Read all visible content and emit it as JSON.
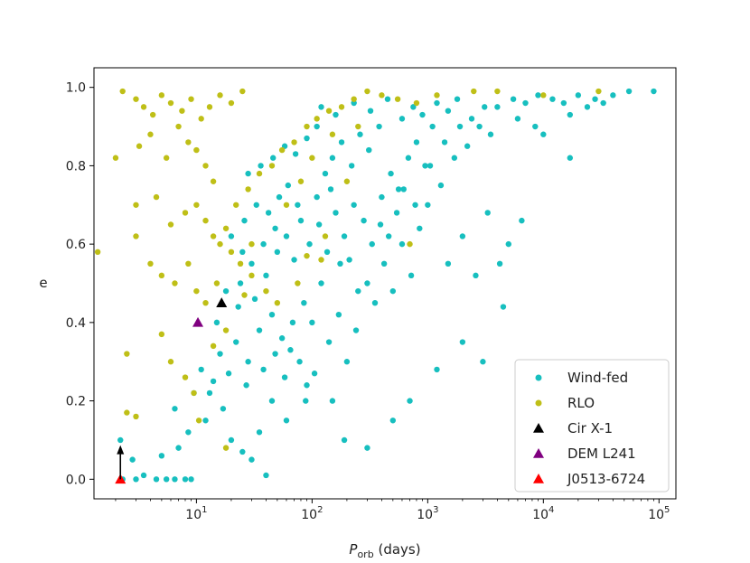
{
  "chart_data": {
    "type": "scatter",
    "xlabel_main": "P",
    "xlabel_sub": "orb",
    "xlabel_unit": " (days)",
    "ylabel": "e",
    "xscale": "log",
    "xlim": [
      1.3,
      140000
    ],
    "ylim": [
      -0.05,
      1.05
    ],
    "x_ticks": [
      {
        "value": 10,
        "base": "10",
        "exp": "1"
      },
      {
        "value": 100,
        "base": "10",
        "exp": "2"
      },
      {
        "value": 1000,
        "base": "10",
        "exp": "3"
      },
      {
        "value": 10000,
        "base": "10",
        "exp": "4"
      },
      {
        "value": 100000,
        "base": "10",
        "exp": "5"
      }
    ],
    "y_ticks": [
      "0.0",
      "0.2",
      "0.4",
      "0.6",
      "0.8",
      "1.0"
    ],
    "legend_position": "lower-right",
    "colors": {
      "wind_fed": "#17bfbf",
      "rlo": "#bfbf17",
      "cir_x1": "#000000",
      "dem_l241": "#800080",
      "j0513": "#ff0000",
      "arrow": "#000000"
    },
    "series": [
      {
        "name": "Wind-fed",
        "marker": "circle",
        "color": "#17bfbf",
        "points": [
          [
            2.3,
            0.0
          ],
          [
            3.0,
            0.0
          ],
          [
            3.5,
            0.01
          ],
          [
            4.5,
            0.0
          ],
          [
            5.5,
            0.0
          ],
          [
            6.5,
            0.0
          ],
          [
            8.0,
            0.0
          ],
          [
            9.0,
            0.0
          ],
          [
            2.2,
            0.1
          ],
          [
            2.8,
            0.05
          ],
          [
            5.0,
            0.06
          ],
          [
            7.0,
            0.08
          ],
          [
            8.5,
            0.12
          ],
          [
            6.5,
            0.18
          ],
          [
            9.5,
            0.22
          ],
          [
            12,
            0.15
          ],
          [
            14,
            0.25
          ],
          [
            17,
            0.18
          ],
          [
            20,
            0.1
          ],
          [
            25,
            0.07
          ],
          [
            30,
            0.05
          ],
          [
            40,
            0.01
          ],
          [
            16,
            0.32
          ],
          [
            22,
            0.35
          ],
          [
            28,
            0.3
          ],
          [
            35,
            0.38
          ],
          [
            45,
            0.42
          ],
          [
            55,
            0.36
          ],
          [
            65,
            0.33
          ],
          [
            18,
            0.48
          ],
          [
            24,
            0.5
          ],
          [
            30,
            0.55
          ],
          [
            40,
            0.52
          ],
          [
            50,
            0.58
          ],
          [
            60,
            0.62
          ],
          [
            70,
            0.56
          ],
          [
            20,
            0.62
          ],
          [
            26,
            0.66
          ],
          [
            33,
            0.7
          ],
          [
            42,
            0.68
          ],
          [
            52,
            0.72
          ],
          [
            62,
            0.75
          ],
          [
            75,
            0.7
          ],
          [
            28,
            0.78
          ],
          [
            36,
            0.8
          ],
          [
            46,
            0.82
          ],
          [
            58,
            0.85
          ],
          [
            72,
            0.83
          ],
          [
            90,
            0.87
          ],
          [
            110,
            0.9
          ],
          [
            85,
            0.45
          ],
          [
            100,
            0.4
          ],
          [
            120,
            0.5
          ],
          [
            140,
            0.35
          ],
          [
            170,
            0.42
          ],
          [
            200,
            0.3
          ],
          [
            240,
            0.38
          ],
          [
            95,
            0.6
          ],
          [
            115,
            0.65
          ],
          [
            135,
            0.58
          ],
          [
            160,
            0.68
          ],
          [
            190,
            0.62
          ],
          [
            230,
            0.7
          ],
          [
            280,
            0.66
          ],
          [
            130,
            0.78
          ],
          [
            150,
            0.82
          ],
          [
            180,
            0.86
          ],
          [
            220,
            0.8
          ],
          [
            260,
            0.88
          ],
          [
            310,
            0.84
          ],
          [
            380,
            0.9
          ],
          [
            300,
            0.5
          ],
          [
            350,
            0.45
          ],
          [
            420,
            0.55
          ],
          [
            500,
            0.48
          ],
          [
            600,
            0.6
          ],
          [
            720,
            0.52
          ],
          [
            850,
            0.64
          ],
          [
            400,
            0.72
          ],
          [
            480,
            0.78
          ],
          [
            560,
            0.74
          ],
          [
            680,
            0.82
          ],
          [
            800,
            0.86
          ],
          [
            950,
            0.8
          ],
          [
            1100,
            0.9
          ],
          [
            600,
            0.92
          ],
          [
            750,
            0.95
          ],
          [
            900,
            0.93
          ],
          [
            1200,
            0.96
          ],
          [
            1500,
            0.94
          ],
          [
            1800,
            0.97
          ],
          [
            1000,
            0.7
          ],
          [
            1300,
            0.75
          ],
          [
            1700,
            0.82
          ],
          [
            2200,
            0.85
          ],
          [
            2800,
            0.9
          ],
          [
            3500,
            0.88
          ],
          [
            1500,
            0.55
          ],
          [
            2000,
            0.62
          ],
          [
            2600,
            0.52
          ],
          [
            3300,
            0.68
          ],
          [
            4200,
            0.55
          ],
          [
            5000,
            0.6
          ],
          [
            2000,
            0.35
          ],
          [
            4500,
            0.44
          ],
          [
            3000,
            0.3
          ],
          [
            1200,
            0.28
          ],
          [
            700,
            0.2
          ],
          [
            500,
            0.15
          ],
          [
            190,
            0.1
          ],
          [
            300,
            0.08
          ],
          [
            150,
            0.2
          ],
          [
            90,
            0.24
          ],
          [
            60,
            0.15
          ],
          [
            45,
            0.2
          ],
          [
            35,
            0.12
          ],
          [
            4000,
            0.95
          ],
          [
            5500,
            0.97
          ],
          [
            7000,
            0.96
          ],
          [
            9000,
            0.98
          ],
          [
            12000,
            0.97
          ],
          [
            15000,
            0.96
          ],
          [
            20000,
            0.98
          ],
          [
            28000,
            0.97
          ],
          [
            40000,
            0.98
          ],
          [
            55000,
            0.99
          ],
          [
            90000,
            0.99
          ],
          [
            6000,
            0.92
          ],
          [
            8500,
            0.9
          ],
          [
            17000,
            0.93
          ],
          [
            24000,
            0.95
          ],
          [
            33000,
            0.96
          ],
          [
            6500,
            0.66
          ],
          [
            17000,
            0.82
          ],
          [
            10000,
            0.88
          ],
          [
            11,
            0.28
          ],
          [
            13,
            0.22
          ],
          [
            15,
            0.4
          ],
          [
            19,
            0.27
          ],
          [
            23,
            0.44
          ],
          [
            27,
            0.24
          ],
          [
            32,
            0.46
          ],
          [
            38,
            0.28
          ],
          [
            48,
            0.32
          ],
          [
            58,
            0.26
          ],
          [
            68,
            0.4
          ],
          [
            78,
            0.3
          ],
          [
            88,
            0.2
          ],
          [
            105,
            0.27
          ],
          [
            25,
            0.58
          ],
          [
            38,
            0.6
          ],
          [
            48,
            0.64
          ],
          [
            80,
            0.66
          ],
          [
            110,
            0.72
          ],
          [
            145,
            0.74
          ],
          [
            175,
            0.55
          ],
          [
            210,
            0.56
          ],
          [
            250,
            0.48
          ],
          [
            330,
            0.6
          ],
          [
            390,
            0.65
          ],
          [
            460,
            0.62
          ],
          [
            540,
            0.68
          ],
          [
            620,
            0.74
          ],
          [
            780,
            0.7
          ],
          [
            1050,
            0.8
          ],
          [
            1400,
            0.86
          ],
          [
            1900,
            0.9
          ],
          [
            2400,
            0.92
          ],
          [
            3100,
            0.95
          ],
          [
            120,
            0.95
          ],
          [
            160,
            0.93
          ],
          [
            230,
            0.96
          ],
          [
            320,
            0.94
          ],
          [
            450,
            0.97
          ]
        ]
      },
      {
        "name": "RLO",
        "marker": "circle",
        "color": "#bfbf17",
        "points": [
          [
            1.4,
            0.58
          ],
          [
            2.0,
            0.82
          ],
          [
            2.3,
            0.99
          ],
          [
            3.0,
            0.97
          ],
          [
            3.5,
            0.95
          ],
          [
            4.2,
            0.93
          ],
          [
            5.0,
            0.98
          ],
          [
            6.0,
            0.96
          ],
          [
            7.5,
            0.94
          ],
          [
            9.0,
            0.97
          ],
          [
            11,
            0.92
          ],
          [
            13,
            0.95
          ],
          [
            16,
            0.98
          ],
          [
            20,
            0.96
          ],
          [
            25,
            0.99
          ],
          [
            3.2,
            0.85
          ],
          [
            4.0,
            0.88
          ],
          [
            5.5,
            0.82
          ],
          [
            7.0,
            0.9
          ],
          [
            8.5,
            0.86
          ],
          [
            10,
            0.84
          ],
          [
            12,
            0.8
          ],
          [
            14,
            0.76
          ],
          [
            3.0,
            0.7
          ],
          [
            4.5,
            0.72
          ],
          [
            6.0,
            0.65
          ],
          [
            8.0,
            0.68
          ],
          [
            10,
            0.7
          ],
          [
            12,
            0.66
          ],
          [
            14,
            0.62
          ],
          [
            16,
            0.6
          ],
          [
            18,
            0.64
          ],
          [
            20,
            0.58
          ],
          [
            3.0,
            0.62
          ],
          [
            4.0,
            0.55
          ],
          [
            5.0,
            0.52
          ],
          [
            6.5,
            0.5
          ],
          [
            8.5,
            0.55
          ],
          [
            10,
            0.48
          ],
          [
            12,
            0.45
          ],
          [
            15,
            0.5
          ],
          [
            2.5,
            0.32
          ],
          [
            2.5,
            0.17
          ],
          [
            3.0,
            0.16
          ],
          [
            5.0,
            0.37
          ],
          [
            6.0,
            0.3
          ],
          [
            8.0,
            0.26
          ],
          [
            9.5,
            0.22
          ],
          [
            10.5,
            0.15
          ],
          [
            18,
            0.08
          ],
          [
            22,
            0.7
          ],
          [
            28,
            0.74
          ],
          [
            35,
            0.78
          ],
          [
            45,
            0.8
          ],
          [
            55,
            0.84
          ],
          [
            70,
            0.86
          ],
          [
            90,
            0.9
          ],
          [
            110,
            0.92
          ],
          [
            140,
            0.94
          ],
          [
            180,
            0.95
          ],
          [
            230,
            0.97
          ],
          [
            300,
            0.99
          ],
          [
            400,
            0.98
          ],
          [
            550,
            0.97
          ],
          [
            800,
            0.96
          ],
          [
            1200,
            0.98
          ],
          [
            2500,
            0.99
          ],
          [
            4000,
            0.99
          ],
          [
            10000,
            0.98
          ],
          [
            30000,
            0.99
          ],
          [
            24,
            0.55
          ],
          [
            30,
            0.52
          ],
          [
            40,
            0.48
          ],
          [
            50,
            0.45
          ],
          [
            75,
            0.5
          ],
          [
            120,
            0.56
          ],
          [
            60,
            0.7
          ],
          [
            80,
            0.76
          ],
          [
            100,
            0.82
          ],
          [
            150,
            0.88
          ],
          [
            250,
            0.9
          ],
          [
            700,
            0.6
          ],
          [
            30,
            0.6
          ],
          [
            26,
            0.47
          ],
          [
            18,
            0.38
          ],
          [
            14,
            0.34
          ],
          [
            200,
            0.76
          ],
          [
            130,
            0.62
          ],
          [
            90,
            0.57
          ]
        ]
      },
      {
        "name": "Cir X-1",
        "marker": "triangle",
        "color": "#000000",
        "points": [
          [
            16.5,
            0.45
          ]
        ]
      },
      {
        "name": "DEM L241",
        "marker": "triangle",
        "color": "#800080",
        "points": [
          [
            10.3,
            0.4
          ]
        ]
      },
      {
        "name": "J0513-6724",
        "marker": "triangle",
        "color": "#ff0000",
        "points": [
          [
            2.2,
            0.0
          ]
        ]
      }
    ],
    "annotation_arrow": {
      "x": 2.2,
      "y_from": 0.0,
      "y_to": 0.08
    }
  }
}
